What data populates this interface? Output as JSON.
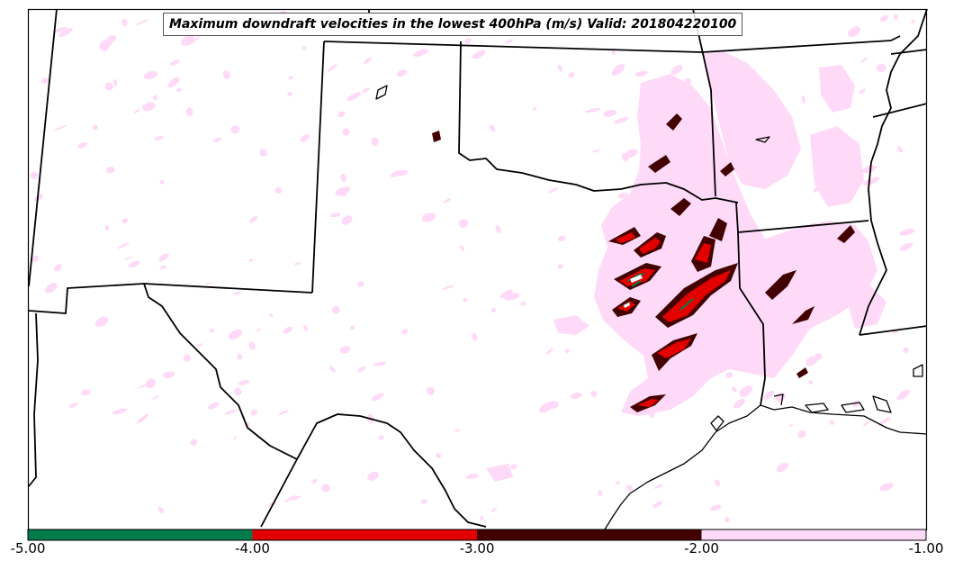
{
  "title": "Maximum downdraft velocities in the lowest 400hPa (m/s) Valid: 201804220100",
  "colorbar": {
    "ticks": [
      "-5.00",
      "-4.00",
      "-3.00",
      "-2.00",
      "-1.00"
    ],
    "bins": [
      {
        "from": -5,
        "to": -4,
        "color": "#047b4b"
      },
      {
        "from": -4,
        "to": -3,
        "color": "#e20000"
      },
      {
        "from": -3,
        "to": -2,
        "color": "#420000"
      },
      {
        "from": -2,
        "to": -1,
        "color": "#ffdaf8"
      }
    ]
  },
  "colors": {
    "light_downdraft": "#ffdaf8",
    "moderate_downdraft": "#420000",
    "strong_downdraft": "#e20000",
    "extreme_downdraft": "#047b4b",
    "boundary": "#000000"
  }
}
